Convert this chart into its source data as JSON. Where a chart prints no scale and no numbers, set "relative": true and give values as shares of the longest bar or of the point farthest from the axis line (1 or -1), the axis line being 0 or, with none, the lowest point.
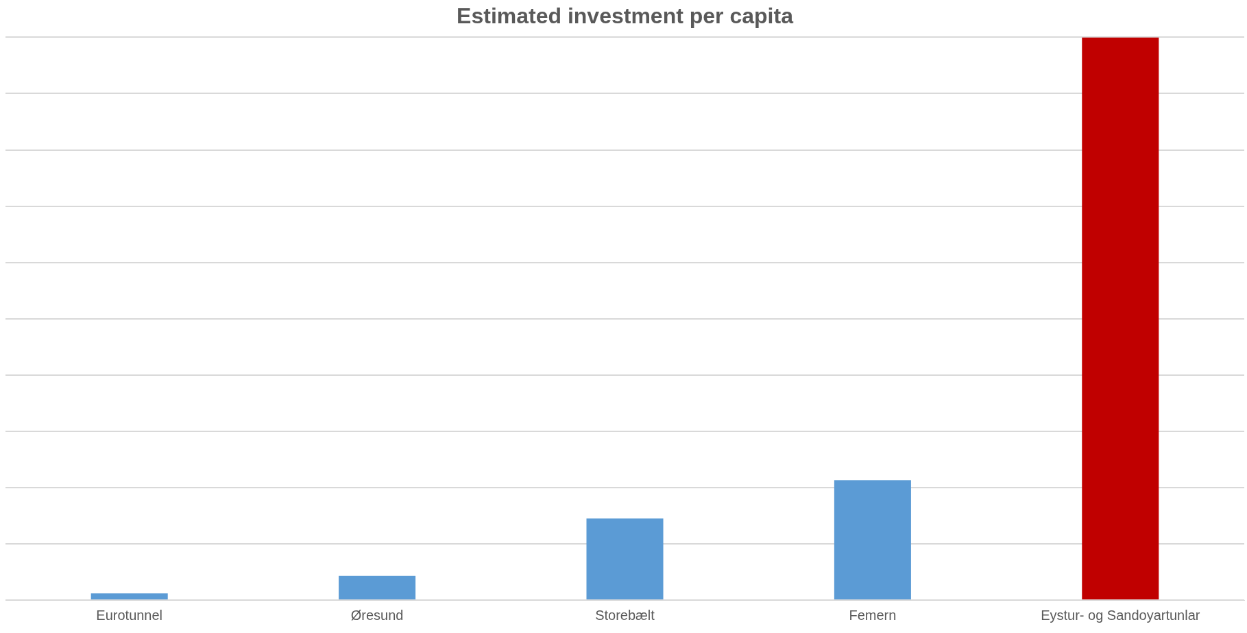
{
  "chart_data": {
    "type": "bar",
    "title": "Estimated investment per capita",
    "categories": [
      "Eurotunnel",
      "Øresund",
      "Storebælt",
      "Femern",
      "Eystur- og Sandoyartunlar"
    ],
    "values": [
      0.012,
      0.043,
      0.145,
      0.213,
      1
    ],
    "colors": [
      "#5b9bd5",
      "#5b9bd5",
      "#5b9bd5",
      "#5b9bd5",
      "#c00000"
    ],
    "relative": true,
    "grid": "y",
    "legend": false
  }
}
